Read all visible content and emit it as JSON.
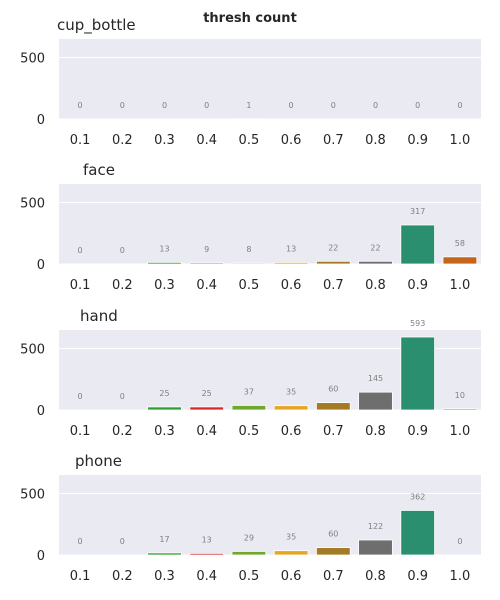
{
  "title": "thresh count",
  "chart_data": [
    {
      "type": "bar",
      "title": "cup_bottle",
      "categories": [
        "0.1",
        "0.2",
        "0.3",
        "0.4",
        "0.5",
        "0.6",
        "0.7",
        "0.8",
        "0.9",
        "1.0"
      ],
      "values": [
        0,
        0,
        0,
        0,
        1,
        0,
        0,
        0,
        0,
        0
      ],
      "value_labels": [
        "0",
        "0",
        "0",
        "0",
        "1",
        "0",
        "0",
        "0",
        "0",
        "0"
      ],
      "yticks": [
        "0",
        "500"
      ],
      "ylim": [
        0,
        650
      ],
      "grid": true
    },
    {
      "type": "bar",
      "title": "face",
      "categories": [
        "0.1",
        "0.2",
        "0.3",
        "0.4",
        "0.5",
        "0.6",
        "0.7",
        "0.8",
        "0.9",
        "1.0"
      ],
      "values": [
        0,
        0,
        13,
        9,
        8,
        13,
        22,
        22,
        317,
        58
      ],
      "value_labels": [
        "0",
        "0",
        "13",
        "9",
        "8",
        "13",
        "22",
        "22",
        "317",
        "58"
      ],
      "yticks": [
        "0",
        "500"
      ],
      "ylim": [
        0,
        650
      ],
      "grid": true
    },
    {
      "type": "bar",
      "title": "hand",
      "categories": [
        "0.1",
        "0.2",
        "0.3",
        "0.4",
        "0.5",
        "0.6",
        "0.7",
        "0.8",
        "0.9",
        "1.0"
      ],
      "values": [
        0,
        0,
        25,
        25,
        37,
        35,
        60,
        145,
        593,
        10
      ],
      "value_labels": [
        "0",
        "0",
        "25",
        "25",
        "37",
        "35",
        "60",
        "145",
        "593",
        "10"
      ],
      "yticks": [
        "0",
        "500"
      ],
      "ylim": [
        0,
        650
      ],
      "grid": true
    },
    {
      "type": "bar",
      "title": "phone",
      "categories": [
        "0.1",
        "0.2",
        "0.3",
        "0.4",
        "0.5",
        "0.6",
        "0.7",
        "0.8",
        "0.9",
        "1.0"
      ],
      "values": [
        0,
        0,
        17,
        13,
        29,
        35,
        60,
        122,
        362,
        0
      ],
      "value_labels": [
        "0",
        "0",
        "17",
        "13",
        "29",
        "35",
        "60",
        "122",
        "362",
        "0"
      ],
      "yticks": [
        "0",
        "500"
      ],
      "ylim": [
        0,
        650
      ],
      "grid": true
    }
  ],
  "colors": {
    "background": "#eaeaf2",
    "grid": "#ffffff",
    "bars": [
      "#1f77b4",
      "#ff7f0e",
      "#2ca02c",
      "#d62728",
      "#6fa82b",
      "#e7a522",
      "#a47a25",
      "#6e6e6e",
      "#2a8f6e",
      "#c5651b"
    ]
  }
}
